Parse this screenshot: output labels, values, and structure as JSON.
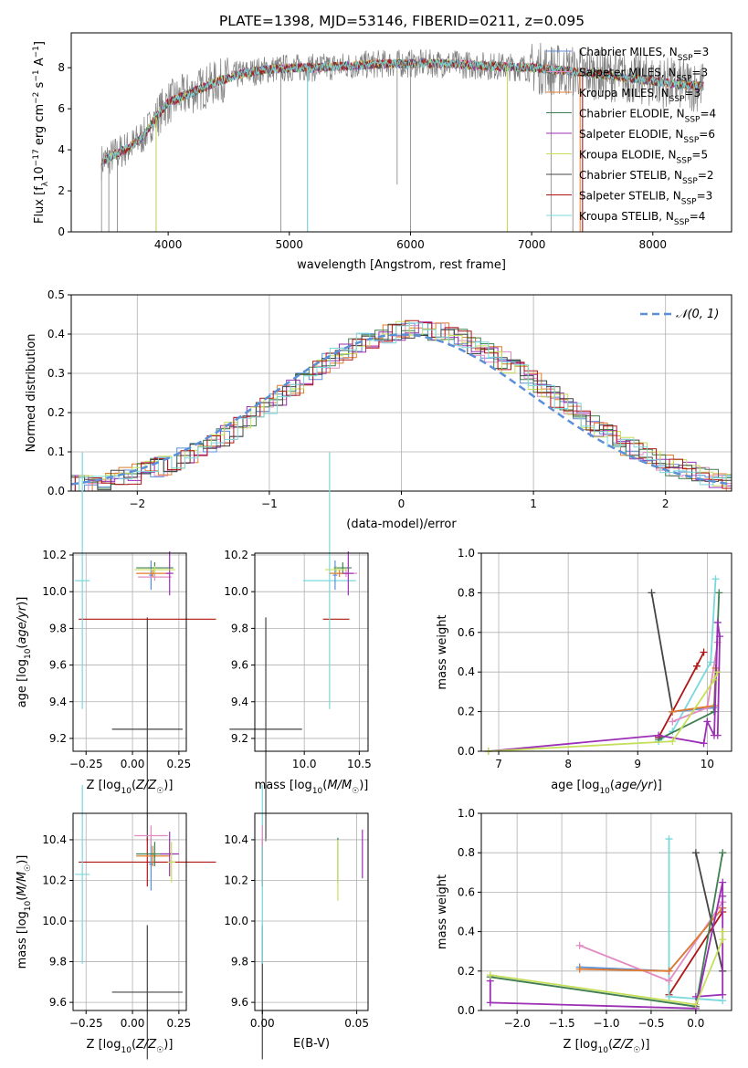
{
  "title": "PLATE=1398, MJD=53146, FIBERID=0211, z=0.095",
  "colors": {
    "chabrier_miles": "#5b8fd8",
    "salpeter_miles": "#e28bc2",
    "kroupa_miles": "#e07b2e",
    "chabrier_elodie": "#3f7f4f",
    "salpeter_elodie": "#9b2fb5",
    "kroupa_elodie": "#c6df5a",
    "chabrier_stelib": "#444444",
    "salpeter_stelib": "#b01515",
    "kroupa_stelib": "#79d8dc",
    "spectrum": "#808080"
  },
  "chart_data": [
    {
      "id": "spectrum",
      "type": "line",
      "xlabel": "wavelength [Angstrom, rest frame]",
      "ylabel": "Flux [f_λ 10^-17 erg cm^-2 s^-1 A^-1]",
      "xlim": [
        3200,
        8650
      ],
      "ylim": [
        0,
        9.7
      ],
      "xticks": [
        "4000",
        "5000",
        "6000",
        "7000",
        "8000"
      ],
      "yticks": [
        "0",
        "2",
        "4",
        "6",
        "8"
      ],
      "legend_loc": "right",
      "legend": [
        {
          "key": "chabrier_miles",
          "base": "Chabrier MILES, N",
          "sub": "SSP",
          "tail": "=3"
        },
        {
          "key": "salpeter_miles",
          "base": "Salpeter MILES, N",
          "sub": "SSP",
          "tail": "=3"
        },
        {
          "key": "kroupa_miles",
          "base": "Kroupa MILES, N",
          "sub": "SSP",
          "tail": "=3"
        },
        {
          "key": "chabrier_elodie",
          "base": "Chabrier ELODIE, N",
          "sub": "SSP",
          "tail": "=4"
        },
        {
          "key": "salpeter_elodie",
          "base": "Salpeter ELODIE, N",
          "sub": "SSP",
          "tail": "=6"
        },
        {
          "key": "kroupa_elodie",
          "base": "Kroupa ELODIE, N",
          "sub": "SSP",
          "tail": "=5"
        },
        {
          "key": "chabrier_stelib",
          "base": "Chabrier STELIB, N",
          "sub": "SSP",
          "tail": "=2"
        },
        {
          "key": "salpeter_stelib",
          "base": "Salpeter STELIB, N",
          "sub": "SSP",
          "tail": "=3"
        },
        {
          "key": "kroupa_stelib",
          "base": "Kroupa STELIB, N",
          "sub": "SSP",
          "tail": "=4"
        }
      ],
      "continuum": [
        [
          3450,
          3.4
        ],
        [
          3600,
          3.9
        ],
        [
          3700,
          4.2
        ],
        [
          3800,
          4.7
        ],
        [
          3900,
          5.6
        ],
        [
          4000,
          6.3
        ],
        [
          4200,
          6.8
        ],
        [
          4400,
          7.3
        ],
        [
          4600,
          7.7
        ],
        [
          4800,
          7.9
        ],
        [
          5000,
          8.0
        ],
        [
          5200,
          8.0
        ],
        [
          5500,
          8.1
        ],
        [
          5800,
          8.2
        ],
        [
          6000,
          8.2
        ],
        [
          6300,
          8.2
        ],
        [
          6600,
          8.1
        ],
        [
          7000,
          8.0
        ],
        [
          7400,
          7.8
        ],
        [
          7800,
          7.5
        ],
        [
          8200,
          7.2
        ],
        [
          8400,
          7.1
        ]
      ],
      "spikes": [
        {
          "x": 3450,
          "ymin": 0
        },
        {
          "x": 3510,
          "ymin": 0
        },
        {
          "x": 3580,
          "ymin": 0
        },
        {
          "x": 3900,
          "ymin": 0
        },
        {
          "x": 4930,
          "ymin": 0
        },
        {
          "x": 5150,
          "ymin": 0
        },
        {
          "x": 5890,
          "ymin": 2.3
        },
        {
          "x": 6000,
          "ymin": 0
        },
        {
          "x": 6800,
          "ymin": 0
        },
        {
          "x": 7160,
          "ymin": 0
        },
        {
          "x": 7340,
          "ymin": 0
        },
        {
          "x": 7420,
          "ymin": 0
        }
      ]
    },
    {
      "id": "residuals",
      "type": "histogram",
      "xlabel": "(data-model)/error",
      "ylabel": "Normed distribution",
      "xlim": [
        -2.5,
        2.5
      ],
      "ylim": [
        0,
        0.5
      ],
      "xticks": [
        "−2",
        "−1",
        "0",
        "1",
        "2"
      ],
      "yticks": [
        "0.0",
        "0.1",
        "0.2",
        "0.3",
        "0.4",
        "0.5"
      ],
      "legend": [
        "𝒩(0, 1)"
      ],
      "bin_width": 0.1
    },
    {
      "id": "age_vs_z",
      "type": "errorbar",
      "xlabel": "Z [log10(Z/Z☉)]",
      "ylabel": "age [log10(age/yr)]",
      "xlim": [
        -0.32,
        0.29
      ],
      "ylim": [
        9.13,
        10.21
      ],
      "xticks": [
        "−0.25",
        "0.00",
        "0.25"
      ],
      "yticks": [
        "9.2",
        "9.4",
        "9.6",
        "9.8",
        "10.0",
        "10.2"
      ],
      "points": [
        {
          "c": "chabrier_stelib",
          "x": 0.08,
          "xerr": 0.19,
          "y": 9.25,
          "yerr": 0.61
        },
        {
          "c": "salpeter_stelib",
          "x": 0.08,
          "xerr": 0.37,
          "y": 9.85,
          "yerr": 0.0
        },
        {
          "c": "kroupa_stelib",
          "x": -0.27,
          "xerr": 0.04,
          "y": 10.06,
          "yerr": 0.7
        },
        {
          "c": "chabrier_miles",
          "x": 0.1,
          "xerr": 0.01,
          "y": 10.09,
          "yerr": 0.08
        },
        {
          "c": "salpeter_miles",
          "x": 0.12,
          "xerr": 0.09,
          "y": 10.08,
          "yerr": 0.02
        },
        {
          "c": "kroupa_miles",
          "x": 0.11,
          "xerr": 0.09,
          "y": 10.1,
          "yerr": 0.02
        },
        {
          "c": "chabrier_elodie",
          "x": 0.12,
          "xerr": 0.1,
          "y": 10.13,
          "yerr": 0.03
        },
        {
          "c": "salpeter_elodie",
          "x": 0.2,
          "xerr": 0.02,
          "y": 10.1,
          "yerr": 0.12
        },
        {
          "c": "kroupa_elodie",
          "x": 0.12,
          "xerr": 0.11,
          "y": 10.12,
          "yerr": 0.02
        }
      ]
    },
    {
      "id": "age_vs_mass",
      "type": "errorbar",
      "xlabel": "mass [log10(M/M☉)]",
      "ylabel": "",
      "xlim": [
        9.55,
        10.58
      ],
      "ylim": [
        9.13,
        10.21
      ],
      "xticks": [
        "10.0",
        "10.5"
      ],
      "yticks": [
        "9.2",
        "9.4",
        "9.6",
        "9.8",
        "10.0",
        "10.2"
      ],
      "points": [
        {
          "c": "chabrier_stelib",
          "x": 9.65,
          "xerr": 0.33,
          "y": 9.25,
          "yerr": 0.61
        },
        {
          "c": "salpeter_stelib",
          "x": 10.29,
          "xerr": 0.12,
          "y": 9.85,
          "yerr": 0.0
        },
        {
          "c": "kroupa_stelib",
          "x": 10.23,
          "xerr": 0.24,
          "y": 10.06,
          "yerr": 0.7
        },
        {
          "c": "chabrier_miles",
          "x": 10.28,
          "xerr": 0.02,
          "y": 10.09,
          "yerr": 0.08
        },
        {
          "c": "salpeter_miles",
          "x": 10.38,
          "xerr": 0.1,
          "y": 10.1,
          "yerr": 0.02
        },
        {
          "c": "kroupa_miles",
          "x": 10.32,
          "xerr": 0.09,
          "y": 10.1,
          "yerr": 0.02
        },
        {
          "c": "chabrier_elodie",
          "x": 10.35,
          "xerr": 0.08,
          "y": 10.13,
          "yerr": 0.03
        },
        {
          "c": "salpeter_elodie",
          "x": 10.4,
          "xerr": 0.05,
          "y": 10.1,
          "yerr": 0.12
        },
        {
          "c": "kroupa_elodie",
          "x": 10.29,
          "xerr": 0.1,
          "y": 10.12,
          "yerr": 0.02
        }
      ]
    },
    {
      "id": "weight_vs_age",
      "type": "line",
      "xlabel": "age [log10(age/yr)]",
      "ylabel": "mass weight",
      "xlim": [
        6.75,
        10.35
      ],
      "ylim": [
        0,
        1
      ],
      "xticks": [
        "7",
        "8",
        "9",
        "10"
      ],
      "yticks": [
        "0.0",
        "0.2",
        "0.4",
        "0.6",
        "0.8",
        "1.0"
      ],
      "series": [
        {
          "c": "chabrier_stelib",
          "x": [
            9.2,
            9.5
          ],
          "y": [
            0.8,
            0.2
          ]
        },
        {
          "c": "salpeter_stelib",
          "x": [
            9.3,
            9.5,
            9.85,
            9.95
          ],
          "y": [
            0.07,
            0.2,
            0.43,
            0.5
          ]
        },
        {
          "c": "kroupa_stelib",
          "x": [
            9.3,
            9.5,
            10.05,
            10.12
          ],
          "y": [
            0.05,
            0.1,
            0.45,
            0.87
          ]
        },
        {
          "c": "chabrier_miles",
          "x": [
            9.5,
            10.09
          ],
          "y": [
            0.2,
            0.22
          ]
        },
        {
          "c": "salpeter_miles",
          "x": [
            9.5,
            10.0,
            10.15
          ],
          "y": [
            0.15,
            0.22,
            0.55
          ]
        },
        {
          "c": "kroupa_miles",
          "x": [
            9.5,
            10.1,
            10.12
          ],
          "y": [
            0.2,
            0.23,
            0.42
          ]
        },
        {
          "c": "chabrier_elodie",
          "x": [
            9.3,
            10.1,
            10.17
          ],
          "y": [
            0.06,
            0.2,
            0.8
          ]
        },
        {
          "c": "salpeter_elodie",
          "x": [
            6.85,
            9.3,
            9.95,
            10.0,
            10.1,
            10.15,
            10.18,
            10.15
          ],
          "y": [
            0.0,
            0.08,
            0.04,
            0.15,
            0.08,
            0.65,
            0.58,
            0.08
          ]
        },
        {
          "c": "kroupa_elodie",
          "x": [
            6.85,
            9.5,
            10.1,
            10.15
          ],
          "y": [
            0.0,
            0.05,
            0.36,
            0.4
          ]
        }
      ]
    },
    {
      "id": "mass_vs_z",
      "type": "errorbar",
      "xlabel": "Z [log10(Z/Z☉)]",
      "ylabel": "mass [log10(M/M☉)]",
      "xlim": [
        -0.32,
        0.29
      ],
      "ylim": [
        9.56,
        10.53
      ],
      "xticks": [
        "−0.25",
        "0.00",
        "0.25"
      ],
      "yticks": [
        "9.6",
        "9.8",
        "10.0",
        "10.2",
        "10.4"
      ],
      "points": [
        {
          "c": "chabrier_stelib",
          "x": 0.08,
          "xerr": 0.19,
          "y": 9.65,
          "yerr": 0.33
        },
        {
          "c": "salpeter_stelib",
          "x": 0.08,
          "xerr": 0.37,
          "y": 10.29,
          "yerr": 0.12
        },
        {
          "c": "kroupa_stelib",
          "x": -0.27,
          "xerr": 0.04,
          "y": 10.23,
          "yerr": 0.44
        },
        {
          "c": "chabrier_miles",
          "x": 0.1,
          "xerr": 0.01,
          "y": 10.28,
          "yerr": 0.13
        },
        {
          "c": "salpeter_miles",
          "x": 0.1,
          "xerr": 0.09,
          "y": 10.42,
          "yerr": 0.05
        },
        {
          "c": "kroupa_miles",
          "x": 0.11,
          "xerr": 0.09,
          "y": 10.32,
          "yerr": 0.05
        },
        {
          "c": "chabrier_elodie",
          "x": 0.12,
          "xerr": 0.1,
          "y": 10.33,
          "yerr": 0.06
        },
        {
          "c": "salpeter_elodie",
          "x": 0.2,
          "xerr": 0.05,
          "y": 10.33,
          "yerr": 0.11
        },
        {
          "c": "kroupa_elodie",
          "x": 0.21,
          "xerr": 0.02,
          "y": 10.29,
          "yerr": 0.1
        }
      ]
    },
    {
      "id": "mass_vs_ebv",
      "type": "errorbar",
      "xlabel": "E(B-V)",
      "ylabel": "",
      "xlim": [
        -0.004,
        0.056
      ],
      "ylim": [
        9.56,
        10.53
      ],
      "xticks": [
        "0.00",
        "0.05"
      ],
      "yticks": [
        "9.6",
        "9.8",
        "10.0",
        "10.2",
        "10.4"
      ],
      "points": [
        {
          "c": "chabrier_stelib",
          "x": 0.0,
          "y": 9.65,
          "yerr": 0.33
        },
        {
          "c": "salpeter_stelib",
          "x": 0.0,
          "y": 10.29,
          "yerr": 0.12
        },
        {
          "c": "kroupa_stelib",
          "x": 0.0,
          "y": 10.23,
          "yerr": 0.44
        },
        {
          "c": "salpeter_miles",
          "x": 0.0,
          "y": 10.42,
          "yerr": 0.05
        },
        {
          "c": "chabrier_elodie",
          "x": 0.04,
          "y": 10.3,
          "yerr": 0.11
        },
        {
          "c": "kroupa_elodie",
          "x": 0.04,
          "y": 10.25,
          "yerr": 0.15
        },
        {
          "c": "salpeter_elodie",
          "x": 0.053,
          "y": 10.33,
          "yerr": 0.12
        }
      ]
    },
    {
      "id": "weight_vs_z",
      "type": "line",
      "xlabel": "Z [log10(Z/Z☉)]",
      "ylabel": "mass weight",
      "xlim": [
        -2.4,
        0.4
      ],
      "ylim": [
        0,
        1
      ],
      "xticks": [
        "−2.0",
        "−1.5",
        "−1.0",
        "−0.5",
        "0.0"
      ],
      "yticks": [
        "0.0",
        "0.2",
        "0.4",
        "0.6",
        "0.8",
        "1.0"
      ],
      "series": [
        {
          "c": "chabrier_stelib",
          "x": [
            0.0,
            0.3
          ],
          "y": [
            0.8,
            0.2
          ]
        },
        {
          "c": "salpeter_stelib",
          "x": [
            -0.3,
            0.3
          ],
          "y": [
            0.08,
            0.5
          ]
        },
        {
          "c": "kroupa_stelib",
          "x": [
            -0.3,
            -0.3,
            0.3
          ],
          "y": [
            0.87,
            0.07,
            0.05
          ]
        },
        {
          "c": "chabrier_miles",
          "x": [
            -1.3,
            -0.3,
            0.3
          ],
          "y": [
            0.22,
            0.2,
            0.52
          ]
        },
        {
          "c": "salpeter_miles",
          "x": [
            -1.3,
            -0.3,
            0.3
          ],
          "y": [
            0.33,
            0.15,
            0.55
          ]
        },
        {
          "c": "kroupa_miles",
          "x": [
            -1.3,
            -0.3,
            0.3
          ],
          "y": [
            0.21,
            0.2,
            0.52
          ]
        },
        {
          "c": "chabrier_elodie",
          "x": [
            -2.3,
            0.0,
            0.3
          ],
          "y": [
            0.17,
            0.02,
            0.8
          ]
        },
        {
          "c": "salpeter_elodie",
          "x": [
            -2.3,
            -2.3,
            0.0,
            0.3,
            0.3,
            0.3,
            0.0
          ],
          "y": [
            0.15,
            0.04,
            0.01,
            0.65,
            0.58,
            0.08,
            0.07
          ]
        },
        {
          "c": "kroupa_elodie",
          "x": [
            -2.3,
            0.0,
            0.3,
            0.3
          ],
          "y": [
            0.18,
            0.03,
            0.36,
            0.4
          ]
        }
      ]
    }
  ]
}
